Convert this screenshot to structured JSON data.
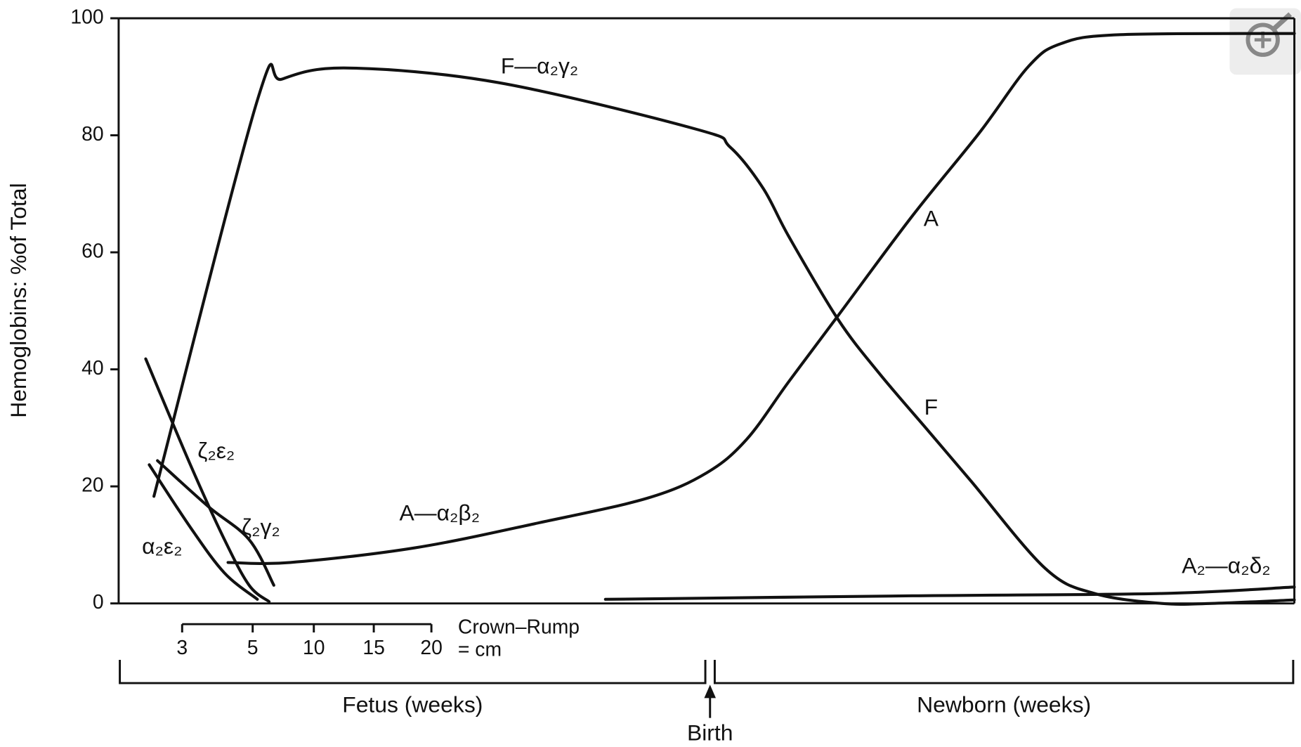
{
  "chart_data": {
    "type": "line",
    "ylabel": "Hemoglobins: %of Total",
    "xlim": [
      0,
      100
    ],
    "ylim": [
      0,
      100
    ],
    "yticks": [
      0,
      20,
      40,
      60,
      80,
      100
    ],
    "color": "#111111",
    "series": [
      {
        "name": "F—α₂γ₂",
        "label_at": [
          35.8,
          91.6
        ],
        "x": [
          3.0,
          11.8,
          13.9,
          19.5,
          32.3,
          49.2,
          52.0,
          54.8,
          57.0,
          61.2,
          64.7,
          68.9,
          72.5,
          78.8,
          83.0,
          88.7,
          93.0,
          100
        ],
        "values": [
          18.3,
          86,
          89.6,
          91.5,
          89,
          81,
          78,
          71,
          62.7,
          48.5,
          39.3,
          29.4,
          20.9,
          6,
          1.7,
          0,
          0,
          0.6
        ]
      },
      {
        "name": "A—α₂β₂",
        "label_at": [
          27.3,
          15.2
        ],
        "x": [
          9.3,
          14.6,
          25.2,
          35.8,
          45.0,
          50.0,
          53.4,
          57.0,
          61.2,
          67.5,
          73.2,
          77.4,
          80.2,
          85.2,
          100
        ],
        "values": [
          7,
          7,
          9.5,
          13.8,
          18,
          22.3,
          28,
          37.9,
          49.2,
          66.2,
          80.4,
          91.8,
          95.7,
          97.2,
          97.4
        ]
      },
      {
        "name": "A₂—α₂δ₂",
        "label_at": [
          94.2,
          6.2
        ],
        "x": [
          41.4,
          67.5,
          88.7,
          100
        ],
        "values": [
          0.7,
          1.3,
          1.7,
          2.8
        ]
      },
      {
        "name": "ζ₂ε₂",
        "label_at": [
          8.3,
          25.8
        ],
        "x": [
          2.3,
          6.1,
          9.0,
          11.1,
          12.8
        ],
        "values": [
          41.8,
          23.7,
          10.9,
          3.1,
          0.3
        ]
      },
      {
        "name": "ζ₂γ₂",
        "label_at": [
          12.1,
          12.8
        ],
        "x": [
          3.3,
          7.6,
          11.1,
          13.2
        ],
        "values": [
          24.4,
          16.6,
          10.9,
          3.1
        ]
      },
      {
        "name": "α₂ε₂",
        "label_at": [
          3.7,
          9.5
        ],
        "x": [
          2.6,
          6.1,
          9.0,
          11.8
        ],
        "values": [
          23.7,
          13,
          5.2,
          0.7
        ]
      }
    ],
    "annotations": [
      {
        "text": "A",
        "x": 69.1,
        "y": 65.5
      },
      {
        "text": "F",
        "x": 69.1,
        "y": 33.3
      }
    ],
    "crown_rump": {
      "label": "Crown–Rump",
      "unit": "= cm",
      "ticks": [
        3,
        5,
        10,
        15,
        20
      ],
      "at_x": [
        5.4,
        11.4,
        16.6,
        21.7,
        26.6
      ]
    },
    "periods": [
      {
        "text": "Fetus (weeks)",
        "from": 0.1,
        "to": 49.9
      },
      {
        "text": "Newborn (weeks)",
        "from": 50.7,
        "to": 99.9
      }
    ],
    "birth": {
      "text": "Birth",
      "x": 50.3
    }
  }
}
